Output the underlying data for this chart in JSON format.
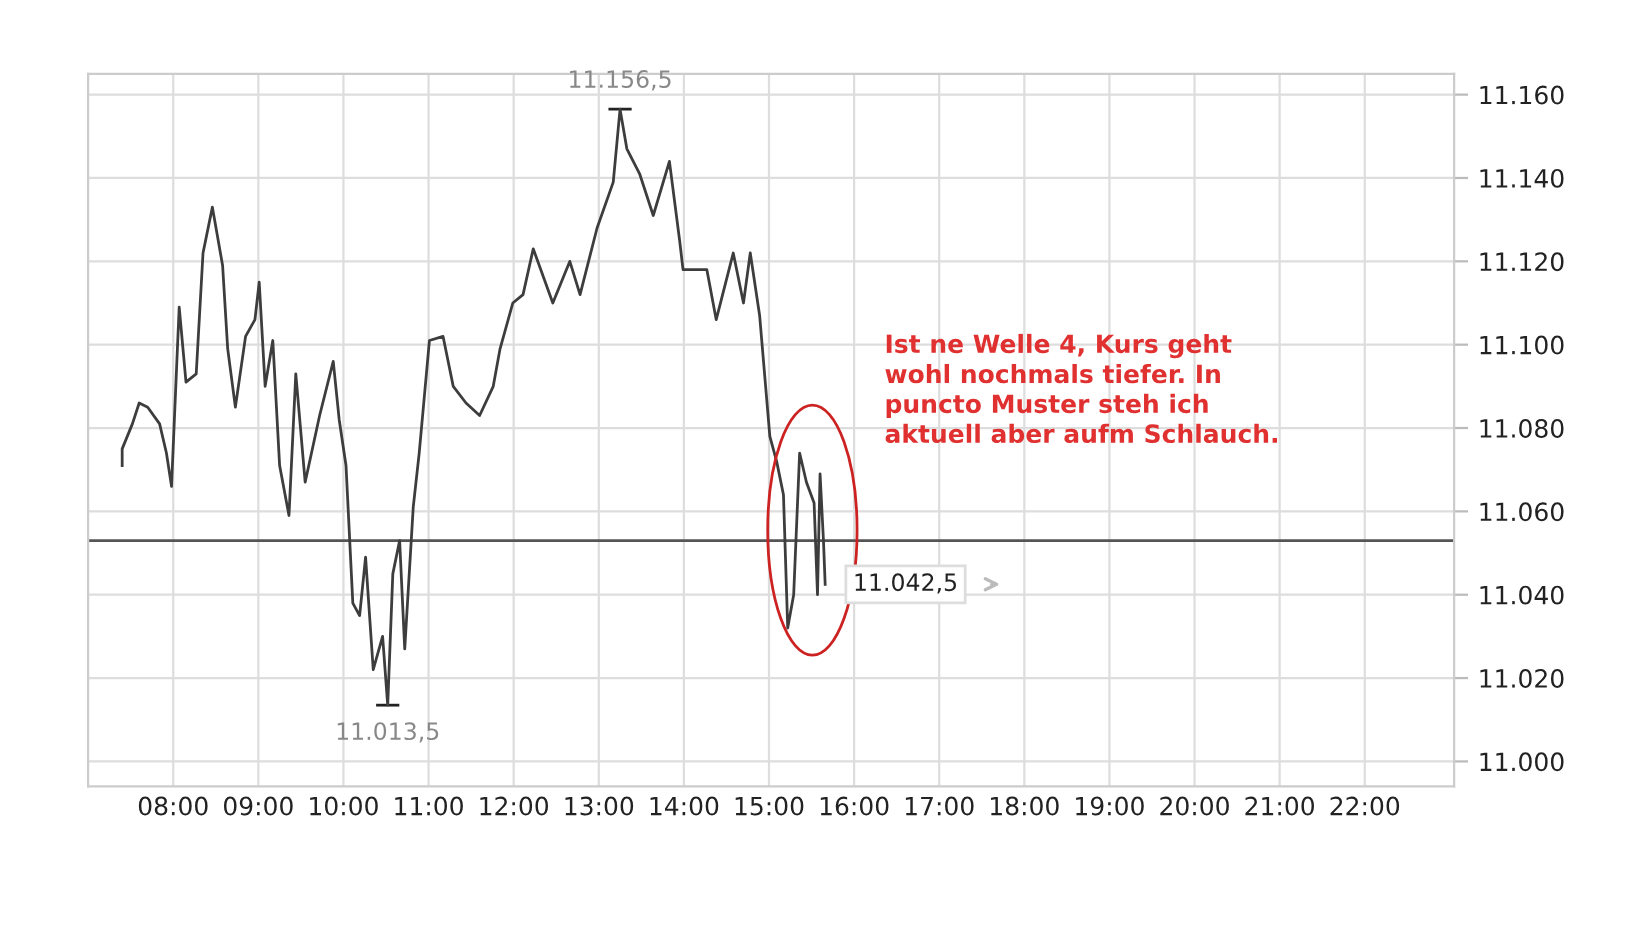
{
  "chart_data": {
    "type": "line",
    "x": [
      7.4,
      7.4,
      7.52,
      7.6,
      7.7,
      7.84,
      7.92,
      7.98,
      8.03,
      8.07,
      8.15,
      8.27,
      8.35,
      8.46,
      8.58,
      8.64,
      8.73,
      8.85,
      8.96,
      9.01,
      9.08,
      9.17,
      9.25,
      9.36,
      9.44,
      9.55,
      9.72,
      9.88,
      9.95,
      10.03,
      10.11,
      10.19,
      10.26,
      10.35,
      10.46,
      10.52,
      10.58,
      10.66,
      10.72,
      10.82,
      10.89,
      11.01,
      11.17,
      11.29,
      11.44,
      11.6,
      11.76,
      11.84,
      11.99,
      12.11,
      12.23,
      12.46,
      12.66,
      12.78,
      12.98,
      13.17,
      13.25,
      13.33,
      13.48,
      13.64,
      13.83,
      13.95,
      13.99,
      14.27,
      14.38,
      14.58,
      14.7,
      14.78,
      14.89,
      15.01,
      15.09,
      15.17,
      15.22,
      15.29,
      15.36,
      15.44,
      15.53,
      15.57,
      15.6,
      15.64,
      15.66
    ],
    "series": [
      {
        "color": "#3d3d3d",
        "values": [
          11071,
          11075,
          11081,
          11086,
          11085,
          11081,
          11074,
          11066,
          11090,
          11109,
          11091,
          11093,
          11122,
          11133,
          11119,
          11099,
          11085,
          11102,
          11106,
          11115,
          11090,
          11101,
          11071,
          11059,
          11093,
          11067,
          11083,
          11096,
          11082,
          11071,
          11038,
          11035,
          11049,
          11022,
          11030,
          11013.5,
          11045,
          11053,
          11027,
          11061,
          11074,
          11101,
          11102,
          11090,
          11086,
          11083,
          11090,
          11099,
          11110,
          11112,
          11123,
          11110,
          11120,
          11112,
          11128,
          11139,
          11156.5,
          11147,
          11141,
          11131,
          11144,
          11125,
          11118,
          11118,
          11106,
          11122,
          11110,
          11122,
          11107,
          11078,
          11072,
          11064,
          11032,
          11040,
          11074,
          11067,
          11062,
          11040,
          11069,
          11053,
          11042.5
        ]
      }
    ],
    "xlim": [
      7,
      23.05
    ],
    "xticks": [
      {
        "value": 8,
        "label": "08:00"
      },
      {
        "value": 9,
        "label": "09:00"
      },
      {
        "value": 10,
        "label": "10:00"
      },
      {
        "value": 11,
        "label": "11:00"
      },
      {
        "value": 12,
        "label": "12:00"
      },
      {
        "value": 13,
        "label": "13:00"
      },
      {
        "value": 14,
        "label": "14:00"
      },
      {
        "value": 15,
        "label": "15:00"
      },
      {
        "value": 16,
        "label": "16:00"
      },
      {
        "value": 17,
        "label": "17:00"
      },
      {
        "value": 18,
        "label": "18:00"
      },
      {
        "value": 19,
        "label": "19:00"
      },
      {
        "value": 20,
        "label": "20:00"
      },
      {
        "value": 21,
        "label": "21:00"
      },
      {
        "value": 22,
        "label": "22:00"
      }
    ],
    "ylim": [
      10994,
      11165
    ],
    "yticks": [
      {
        "value": 11000,
        "label": "11.000"
      },
      {
        "value": 11020,
        "label": "11.020"
      },
      {
        "value": 11040,
        "label": "11.040"
      },
      {
        "value": 11060,
        "label": "11.060"
      },
      {
        "value": 11080,
        "label": "11.080"
      },
      {
        "value": 11100,
        "label": "11.100"
      },
      {
        "value": 11120,
        "label": "11.120"
      },
      {
        "value": 11140,
        "label": "11.140"
      },
      {
        "value": 11160,
        "label": "11.160"
      }
    ],
    "ref_lines": [
      {
        "axis": "y",
        "value": 11053,
        "color": "#555555"
      }
    ],
    "annotations": [
      {
        "text": "11.156,5",
        "x": 13.25,
        "y": 11156.5
      },
      {
        "text": "11.013,5",
        "x": 10.52,
        "y": 11013.5
      },
      {
        "text": "11.042,5",
        "x": 15.66,
        "y": 11042.5
      },
      "Ist ne Welle 4, Kurs geht\nwohl nochmals tiefer. In\npuncto Muster steh ich\naktuell aber aufm Schlauch."
    ],
    "grid": true,
    "marker": "none",
    "line_style": "solid"
  }
}
